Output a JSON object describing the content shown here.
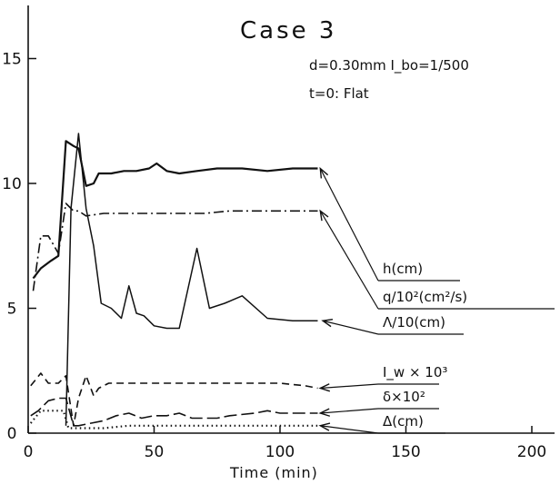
{
  "chart_data": {
    "type": "line",
    "title": "Case 3",
    "subtitle_lines": [
      "d=0.30mm  I_bo=1/500",
      "t=0: Flat"
    ],
    "xlabel": "Time   (min)",
    "ylabel": "",
    "xlim": [
      0,
      200
    ],
    "ylim": [
      0,
      17
    ],
    "x_ticks": [
      "0",
      "50",
      "100",
      "150",
      "200"
    ],
    "y_ticks": [
      "0",
      "5",
      "10",
      "15"
    ],
    "grid": false,
    "legend": "inline labels with leader arrows (right side)",
    "series": [
      {
        "name": "h(cm)",
        "style": "solid",
        "x": [
          2,
          5,
          9,
          12,
          15,
          18,
          20,
          23,
          26,
          28,
          33,
          38,
          43,
          48,
          51,
          55,
          60,
          67,
          75,
          85,
          95,
          105,
          115
        ],
        "y": [
          6.2,
          6.6,
          6.9,
          7.1,
          11.7,
          11.5,
          11.4,
          9.9,
          10.0,
          10.4,
          10.4,
          10.5,
          10.5,
          10.6,
          10.8,
          10.5,
          10.4,
          10.5,
          10.6,
          10.6,
          10.5,
          10.6,
          10.6
        ]
      },
      {
        "name": "q/10²(cm²/s)",
        "style": "dash-dot",
        "x": [
          2,
          5,
          8,
          12,
          15,
          18,
          20,
          23,
          30,
          40,
          50,
          60,
          70,
          80,
          90,
          100,
          110,
          115
        ],
        "y": [
          5.7,
          7.9,
          7.9,
          7.2,
          9.2,
          8.9,
          8.9,
          8.7,
          8.8,
          8.8,
          8.8,
          8.8,
          8.8,
          8.9,
          8.9,
          8.9,
          8.9,
          8.9
        ]
      },
      {
        "name": "Λ/10(cm)",
        "style": "solid",
        "x": [
          15,
          17,
          20,
          23,
          26,
          29,
          33,
          37,
          40,
          43,
          46,
          50,
          55,
          60,
          67,
          72,
          78,
          85,
          95,
          105,
          110,
          115
        ],
        "y": [
          0.3,
          9.0,
          12.0,
          9.0,
          7.5,
          5.2,
          5.0,
          4.6,
          5.9,
          4.8,
          4.7,
          4.3,
          4.2,
          4.2,
          7.4,
          5.0,
          5.2,
          5.5,
          4.6,
          4.5,
          4.5,
          4.5
        ]
      },
      {
        "name": "I_w × 10³",
        "style": "dashed",
        "x": [
          1,
          5,
          8,
          12,
          15,
          18,
          20,
          23,
          26,
          28,
          32,
          40,
          60,
          80,
          100,
          110,
          115
        ],
        "y": [
          1.9,
          2.4,
          2.0,
          2.0,
          2.3,
          0.3,
          1.4,
          2.3,
          1.5,
          1.8,
          2.0,
          2.0,
          2.0,
          2.0,
          2.0,
          1.9,
          1.8
        ]
      },
      {
        "name": "δ×10²",
        "style": "long-dash",
        "x": [
          1,
          4,
          8,
          12,
          15,
          18,
          20,
          25,
          30,
          35,
          40,
          45,
          50,
          55,
          60,
          65,
          70,
          75,
          80,
          90,
          95,
          100,
          110,
          115
        ],
        "y": [
          0.7,
          0.9,
          1.3,
          1.4,
          1.4,
          0.3,
          0.3,
          0.4,
          0.5,
          0.7,
          0.8,
          0.6,
          0.7,
          0.7,
          0.8,
          0.6,
          0.6,
          0.6,
          0.7,
          0.8,
          0.9,
          0.8,
          0.8,
          0.8
        ]
      },
      {
        "name": "Δ(cm)",
        "style": "dotted",
        "x": [
          1,
          5,
          10,
          14,
          16,
          18,
          22,
          30,
          40,
          50,
          60,
          70,
          80,
          90,
          100,
          110,
          115
        ],
        "y": [
          0.4,
          0.9,
          0.9,
          0.9,
          0.2,
          0.2,
          0.2,
          0.2,
          0.3,
          0.3,
          0.3,
          0.3,
          0.3,
          0.3,
          0.3,
          0.3,
          0.3
        ]
      }
    ]
  }
}
